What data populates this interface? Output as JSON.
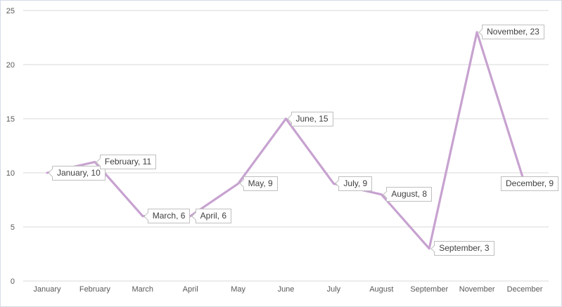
{
  "chart_data": {
    "type": "line",
    "title": "",
    "xlabel": "",
    "ylabel": "",
    "categories": [
      "January",
      "February",
      "March",
      "April",
      "May",
      "June",
      "July",
      "August",
      "September",
      "November",
      "December"
    ],
    "values": [
      10,
      11,
      6,
      6,
      9,
      15,
      9,
      8,
      3,
      23,
      9
    ],
    "labels": [
      "January, 10",
      "February, 11",
      "March, 6",
      "April, 6",
      "May, 9",
      "June, 15",
      "July, 9",
      "August, 8",
      "September, 3",
      "November, 23",
      "December, 9"
    ],
    "yticks": [
      0,
      5,
      10,
      15,
      20,
      25
    ],
    "ylim": [
      0,
      25
    ],
    "grid": true,
    "legend": "none",
    "colors": {
      "line": "#c7a2d0",
      "gridline": "#d9d9d9",
      "axis_text": "#595959",
      "label_text": "#3f3f3f",
      "label_border": "#bfbfbf",
      "chart_border": "#d5dbe6",
      "background": "#ffffff"
    }
  }
}
